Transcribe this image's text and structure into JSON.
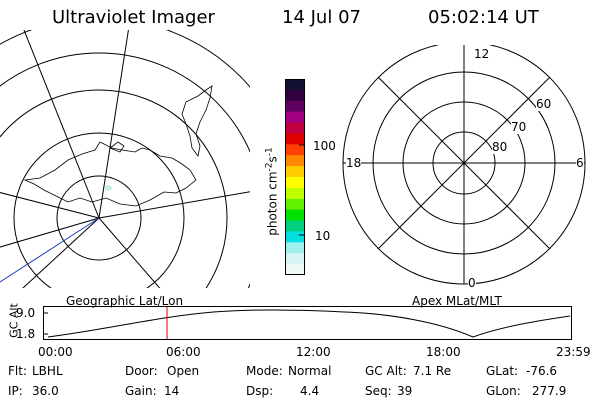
{
  "header": {
    "title": "Ultraviolet Imager",
    "date": "14 Jul 07",
    "time": "05:02:14 UT"
  },
  "colorbar": {
    "unit_label": "photon cm",
    "unit_exp1": "-2",
    "unit_mid": "s",
    "unit_exp2": "-1",
    "tick_high": "100",
    "tick_low": "10",
    "colors": [
      "#101030",
      "#300040",
      "#600060",
      "#a00080",
      "#c00040",
      "#e00000",
      "#ff4000",
      "#ff8800",
      "#ffcc00",
      "#ffff00",
      "#c0ff00",
      "#60f000",
      "#00e000",
      "#00d080",
      "#00e0e0",
      "#a0f0f0",
      "#d8f4f4",
      "#f0f8f8"
    ]
  },
  "polar_grid": {
    "top_label": "12",
    "left_label": "18",
    "right_label": "6",
    "bottom_label": "0",
    "ring_labels": [
      "60",
      "70",
      "80"
    ]
  },
  "map_labels": {
    "left": "Geographic Lat/Lon",
    "right": "Apex MLat/MLT"
  },
  "altitude_plot": {
    "axis_label": "GC Alt",
    "y_ticks": [
      "9.0",
      "1.8"
    ],
    "x_ticks": [
      "00:00",
      "06:00",
      "12:00",
      "18:00",
      "23:59"
    ],
    "marker_color": "#e00000"
  },
  "status": {
    "flt_label": "Flt:",
    "flt_value": "LBHL",
    "ip_label": "IP:",
    "ip_value": "36.0",
    "door_label": "Door:",
    "door_value": "Open",
    "gain_label": "Gain:",
    "gain_value": "14",
    "mode_label": "Mode:",
    "mode_value": "Normal",
    "dsp_label": "Dsp:",
    "dsp_value": "4.4",
    "gcalt_label": "GC Alt:",
    "gcalt_value": "7.1 Re",
    "seq_label": "Seq:",
    "seq_value": "39",
    "glat_label": "GLat:",
    "glat_value": "-76.6",
    "glon_label": "GLon:",
    "glon_value": "277.9"
  }
}
